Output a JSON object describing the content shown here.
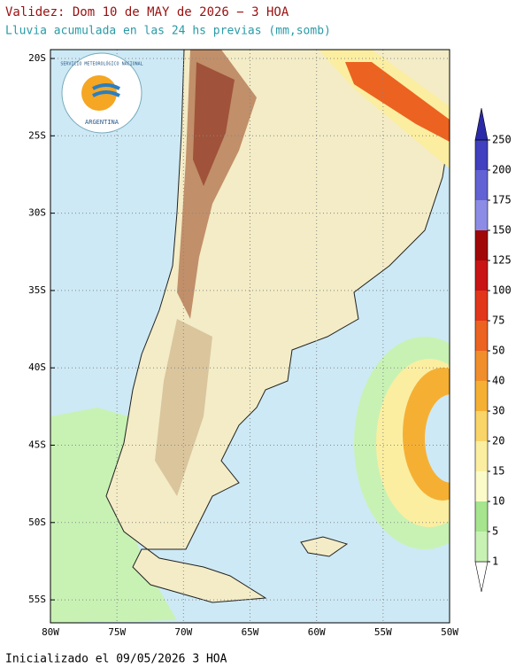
{
  "header": {
    "title": "Validez: Dom 10 de MAY de 2026 − 3 HOA",
    "subtitle": "Lluvia acumulada en las 24 hs previas (mm,somb)"
  },
  "map": {
    "lat_labels": [
      "20S",
      "25S",
      "30S",
      "35S",
      "40S",
      "45S",
      "50S",
      "55S"
    ],
    "lon_labels": [
      "80W",
      "75W",
      "70W",
      "65W",
      "60W",
      "55W",
      "50W"
    ]
  },
  "logo": {
    "text_top": "SERVICIO METEOROLÓGICO NACIONAL",
    "text_bottom": "ARGENTINA"
  },
  "colorbar": {
    "levels": [
      1,
      5,
      10,
      15,
      20,
      30,
      40,
      50,
      75,
      100,
      125,
      150,
      175,
      200,
      250
    ],
    "colors": [
      "#ffffff",
      "#c8f2b4",
      "#a6e48e",
      "#fbfbca",
      "#fbeea0",
      "#f9d468",
      "#f5b034",
      "#f18e2c",
      "#ec6220",
      "#e2361a",
      "#c81414",
      "#a00808",
      "#8c8ce6",
      "#6262d4",
      "#4040c0",
      "#2a2aa8"
    ]
  },
  "footer": "Inicializado el 09/05/2026 3 HOA"
}
